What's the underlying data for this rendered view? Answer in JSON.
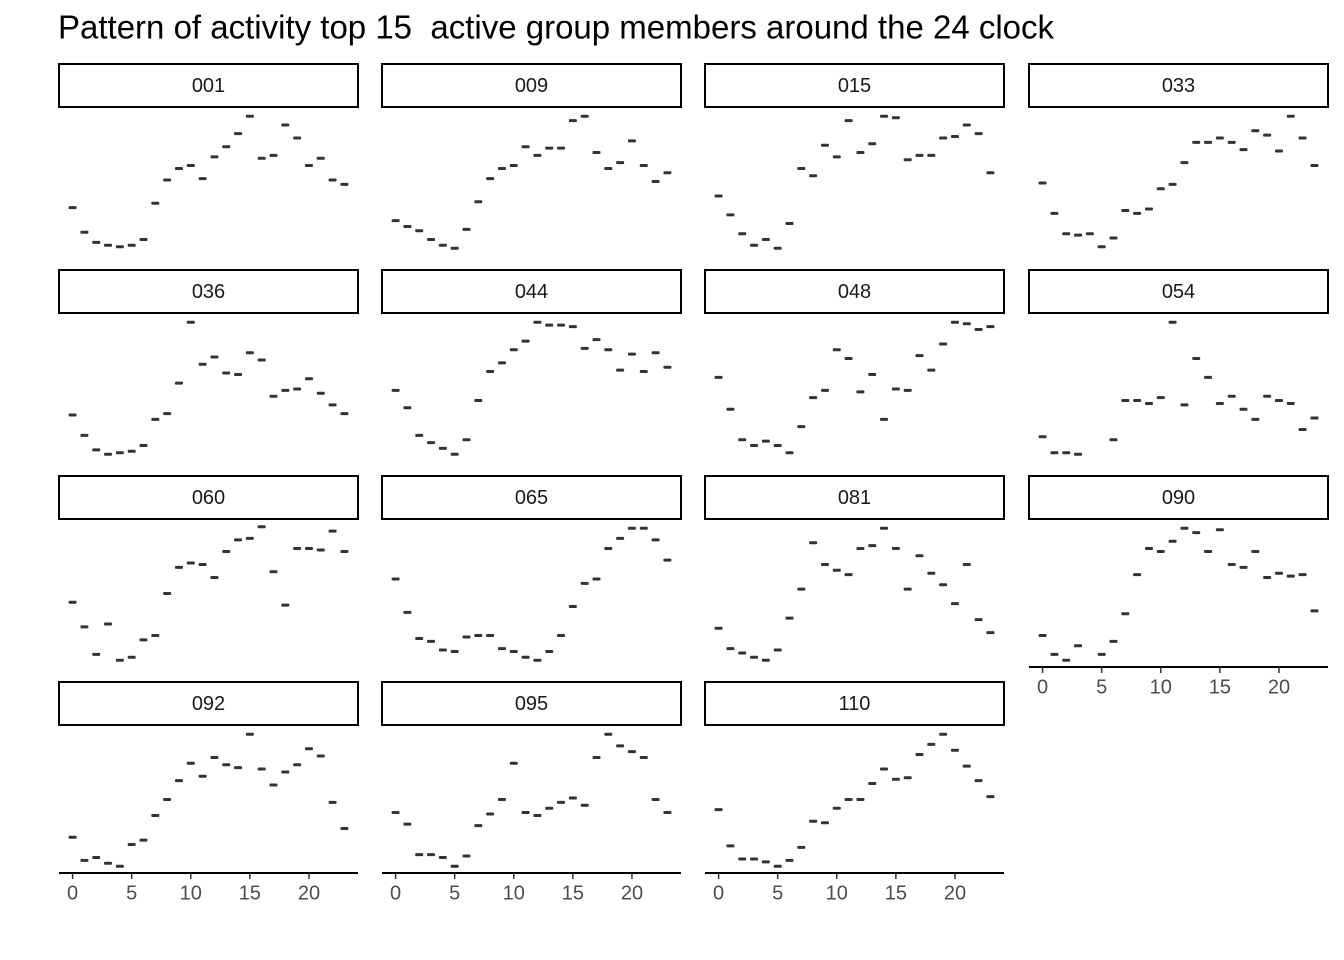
{
  "title": "Pattern of activity top 15  active group members around the 24 clock",
  "chart_data": [
    {
      "type": "scatter",
      "title": "001",
      "color": "#333333",
      "xlim": [
        -1.15,
        24.15
      ],
      "ylim": [
        0,
        100
      ],
      "x": [
        0,
        1,
        2,
        3,
        4,
        5,
        6,
        7,
        8,
        9,
        10,
        11,
        12,
        13,
        14,
        15,
        16,
        17,
        18,
        19,
        20,
        21,
        22,
        23
      ],
      "values": [
        32,
        15,
        8,
        6,
        5,
        6,
        10,
        35,
        51,
        59,
        61,
        52,
        67,
        74,
        83,
        95,
        66,
        68,
        89,
        80,
        61,
        66,
        51,
        48
      ]
    },
    {
      "type": "scatter",
      "title": "009",
      "color": "#333333",
      "xlim": [
        -1.15,
        24.15
      ],
      "ylim": [
        0,
        100
      ],
      "x": [
        0,
        1,
        2,
        3,
        4,
        5,
        6,
        7,
        8,
        9,
        10,
        11,
        12,
        13,
        14,
        15,
        16,
        17,
        18,
        19,
        20,
        21,
        22,
        23
      ],
      "values": [
        23,
        19,
        16,
        10,
        6,
        4,
        17,
        36,
        52,
        59,
        61,
        74,
        68,
        73,
        73,
        92,
        95,
        70,
        59,
        63,
        78,
        61,
        50,
        56
      ]
    },
    {
      "type": "scatter",
      "title": "015",
      "color": "#333333",
      "xlim": [
        -1.15,
        24.15
      ],
      "ylim": [
        0,
        100
      ],
      "x": [
        0,
        1,
        2,
        3,
        4,
        5,
        6,
        7,
        8,
        9,
        10,
        11,
        12,
        13,
        14,
        15,
        16,
        17,
        18,
        19,
        20,
        21,
        22,
        23
      ],
      "values": [
        40,
        27,
        14,
        6,
        10,
        4,
        21,
        59,
        54,
        75,
        67,
        92,
        70,
        76,
        95,
        94,
        65,
        68,
        68,
        80,
        81,
        89,
        83,
        56
      ]
    },
    {
      "type": "scatter",
      "title": "033",
      "color": "#333333",
      "xlim": [
        -1.15,
        24.15
      ],
      "ylim": [
        0,
        100
      ],
      "x": [
        0,
        1,
        2,
        3,
        4,
        5,
        6,
        7,
        8,
        9,
        10,
        11,
        12,
        13,
        14,
        15,
        16,
        17,
        18,
        19,
        20,
        21,
        22,
        23
      ],
      "values": [
        49,
        28,
        14,
        13,
        14,
        5,
        11,
        30,
        28,
        31,
        45,
        48,
        63,
        77,
        77,
        80,
        77,
        72,
        85,
        82,
        71,
        95,
        80,
        61
      ]
    },
    {
      "type": "scatter",
      "title": "036",
      "color": "#333333",
      "xlim": [
        -1.15,
        24.15
      ],
      "ylim": [
        0,
        100
      ],
      "x": [
        0,
        1,
        2,
        3,
        4,
        5,
        6,
        7,
        8,
        9,
        10,
        11,
        12,
        13,
        14,
        15,
        16,
        17,
        18,
        19,
        20,
        21,
        22,
        23
      ],
      "values": [
        31,
        17,
        7,
        4,
        5,
        6,
        10,
        28,
        32,
        53,
        95,
        66,
        71,
        60,
        59,
        74,
        69,
        44,
        48,
        49,
        56,
        46,
        38,
        32
      ]
    },
    {
      "type": "scatter",
      "title": "044",
      "color": "#333333",
      "xlim": [
        -1.15,
        24.15
      ],
      "ylim": [
        0,
        100
      ],
      "x": [
        0,
        1,
        2,
        3,
        4,
        5,
        6,
        7,
        8,
        9,
        10,
        11,
        12,
        13,
        14,
        15,
        16,
        17,
        18,
        19,
        20,
        21,
        22,
        23
      ],
      "values": [
        48,
        36,
        17,
        12,
        8,
        4,
        14,
        41,
        61,
        67,
        76,
        82,
        95,
        93,
        93,
        92,
        77,
        83,
        76,
        62,
        73,
        61,
        74,
        64
      ]
    },
    {
      "type": "scatter",
      "title": "048",
      "color": "#333333",
      "xlim": [
        -1.15,
        24.15
      ],
      "ylim": [
        0,
        100
      ],
      "x": [
        0,
        1,
        2,
        3,
        4,
        5,
        6,
        7,
        8,
        9,
        10,
        11,
        12,
        13,
        14,
        15,
        16,
        17,
        18,
        19,
        20,
        21,
        22,
        23
      ],
      "values": [
        57,
        35,
        14,
        10,
        13,
        10,
        5,
        23,
        43,
        48,
        76,
        70,
        47,
        59,
        28,
        49,
        48,
        72,
        62,
        80,
        95,
        94,
        90,
        92
      ]
    },
    {
      "type": "scatter",
      "title": "054",
      "color": "#333333",
      "xlim": [
        -1.15,
        24.15
      ],
      "ylim": [
        0,
        100
      ],
      "x": [
        0,
        1,
        2,
        3,
        4,
        5,
        6,
        7,
        8,
        9,
        10,
        11,
        12,
        13,
        14,
        15,
        16,
        17,
        18,
        19,
        20,
        21,
        22,
        23
      ],
      "values": [
        16,
        5,
        5,
        4,
        null,
        null,
        14,
        41,
        41,
        39,
        43,
        95,
        38,
        70,
        57,
        39,
        44,
        35,
        28,
        44,
        41,
        39,
        21,
        29
      ]
    },
    {
      "type": "scatter",
      "title": "060",
      "color": "#333333",
      "xlim": [
        -1.15,
        24.15
      ],
      "ylim": [
        0,
        100
      ],
      "x": [
        0,
        1,
        2,
        3,
        4,
        5,
        6,
        7,
        8,
        9,
        10,
        11,
        12,
        13,
        14,
        15,
        16,
        17,
        18,
        19,
        20,
        21,
        22,
        23
      ],
      "values": [
        44,
        27,
        8,
        29,
        4,
        6,
        18,
        21,
        50,
        68,
        71,
        70,
        61,
        79,
        87,
        88,
        96,
        65,
        42,
        81,
        81,
        80,
        93,
        79
      ]
    },
    {
      "type": "scatter",
      "title": "065",
      "color": "#333333",
      "xlim": [
        -1.15,
        24.15
      ],
      "ylim": [
        0,
        100
      ],
      "x": [
        0,
        1,
        2,
        3,
        4,
        5,
        6,
        7,
        8,
        9,
        10,
        11,
        12,
        13,
        14,
        15,
        16,
        17,
        18,
        19,
        20,
        21,
        22,
        23
      ],
      "values": [
        60,
        37,
        19,
        17,
        11,
        10,
        20,
        21,
        21,
        12,
        10,
        6,
        4,
        10,
        21,
        41,
        57,
        60,
        81,
        88,
        95,
        95,
        87,
        73
      ]
    },
    {
      "type": "scatter",
      "title": "081",
      "color": "#333333",
      "xlim": [
        -1.15,
        24.15
      ],
      "ylim": [
        0,
        100
      ],
      "x": [
        0,
        1,
        2,
        3,
        4,
        5,
        6,
        7,
        8,
        9,
        10,
        11,
        12,
        13,
        14,
        15,
        16,
        17,
        18,
        19,
        20,
        21,
        22,
        23
      ],
      "values": [
        26,
        12,
        9,
        6,
        4,
        11,
        33,
        53,
        85,
        70,
        66,
        63,
        81,
        83,
        95,
        81,
        53,
        76,
        64,
        56,
        43,
        70,
        32,
        23
      ]
    },
    {
      "type": "scatter",
      "title": "090",
      "color": "#333333",
      "xlim": [
        -1.15,
        24.15
      ],
      "ylim": [
        0,
        100
      ],
      "xticks": [
        0,
        5,
        10,
        15,
        20
      ],
      "x": [
        0,
        1,
        2,
        3,
        4,
        5,
        6,
        7,
        8,
        9,
        10,
        11,
        12,
        13,
        14,
        15,
        16,
        17,
        18,
        19,
        20,
        21,
        22,
        23
      ],
      "values": [
        21,
        8,
        4,
        14,
        null,
        8,
        17,
        36,
        63,
        81,
        79,
        86,
        95,
        92,
        79,
        94,
        70,
        68,
        79,
        61,
        64,
        62,
        63,
        38
      ]
    },
    {
      "type": "scatter",
      "title": "092",
      "color": "#333333",
      "xlim": [
        -1.15,
        24.15
      ],
      "ylim": [
        0,
        100
      ],
      "xticks": [
        0,
        5,
        10,
        15,
        20
      ],
      "x": [
        0,
        1,
        2,
        3,
        4,
        5,
        6,
        7,
        8,
        9,
        10,
        11,
        12,
        13,
        14,
        15,
        16,
        17,
        18,
        19,
        20,
        21,
        22,
        23
      ],
      "values": [
        24,
        8,
        10,
        6,
        4,
        19,
        22,
        39,
        50,
        63,
        75,
        66,
        79,
        74,
        72,
        95,
        71,
        60,
        69,
        74,
        85,
        80,
        48,
        30
      ]
    },
    {
      "type": "scatter",
      "title": "095",
      "color": "#333333",
      "xlim": [
        -1.15,
        24.15
      ],
      "ylim": [
        0,
        100
      ],
      "xticks": [
        0,
        5,
        10,
        15,
        20
      ],
      "x": [
        0,
        1,
        2,
        3,
        4,
        5,
        6,
        7,
        8,
        9,
        10,
        11,
        12,
        13,
        14,
        15,
        16,
        17,
        18,
        19,
        20,
        21,
        22,
        23
      ],
      "values": [
        41,
        33,
        12,
        12,
        10,
        4,
        11,
        32,
        40,
        50,
        75,
        41,
        39,
        44,
        48,
        51,
        46,
        79,
        95,
        87,
        83,
        79,
        50,
        41
      ]
    },
    {
      "type": "scatter",
      "title": "110",
      "color": "#333333",
      "xlim": [
        -1.15,
        24.15
      ],
      "ylim": [
        0,
        100
      ],
      "xticks": [
        0,
        5,
        10,
        15,
        20
      ],
      "x": [
        0,
        1,
        2,
        3,
        4,
        5,
        6,
        7,
        8,
        9,
        10,
        11,
        12,
        13,
        14,
        15,
        16,
        17,
        18,
        19,
        20,
        21,
        22,
        23
      ],
      "values": [
        43,
        18,
        9,
        9,
        7,
        4,
        8,
        17,
        35,
        34,
        44,
        50,
        50,
        61,
        71,
        64,
        65,
        81,
        88,
        95,
        84,
        73,
        63,
        52
      ]
    }
  ]
}
